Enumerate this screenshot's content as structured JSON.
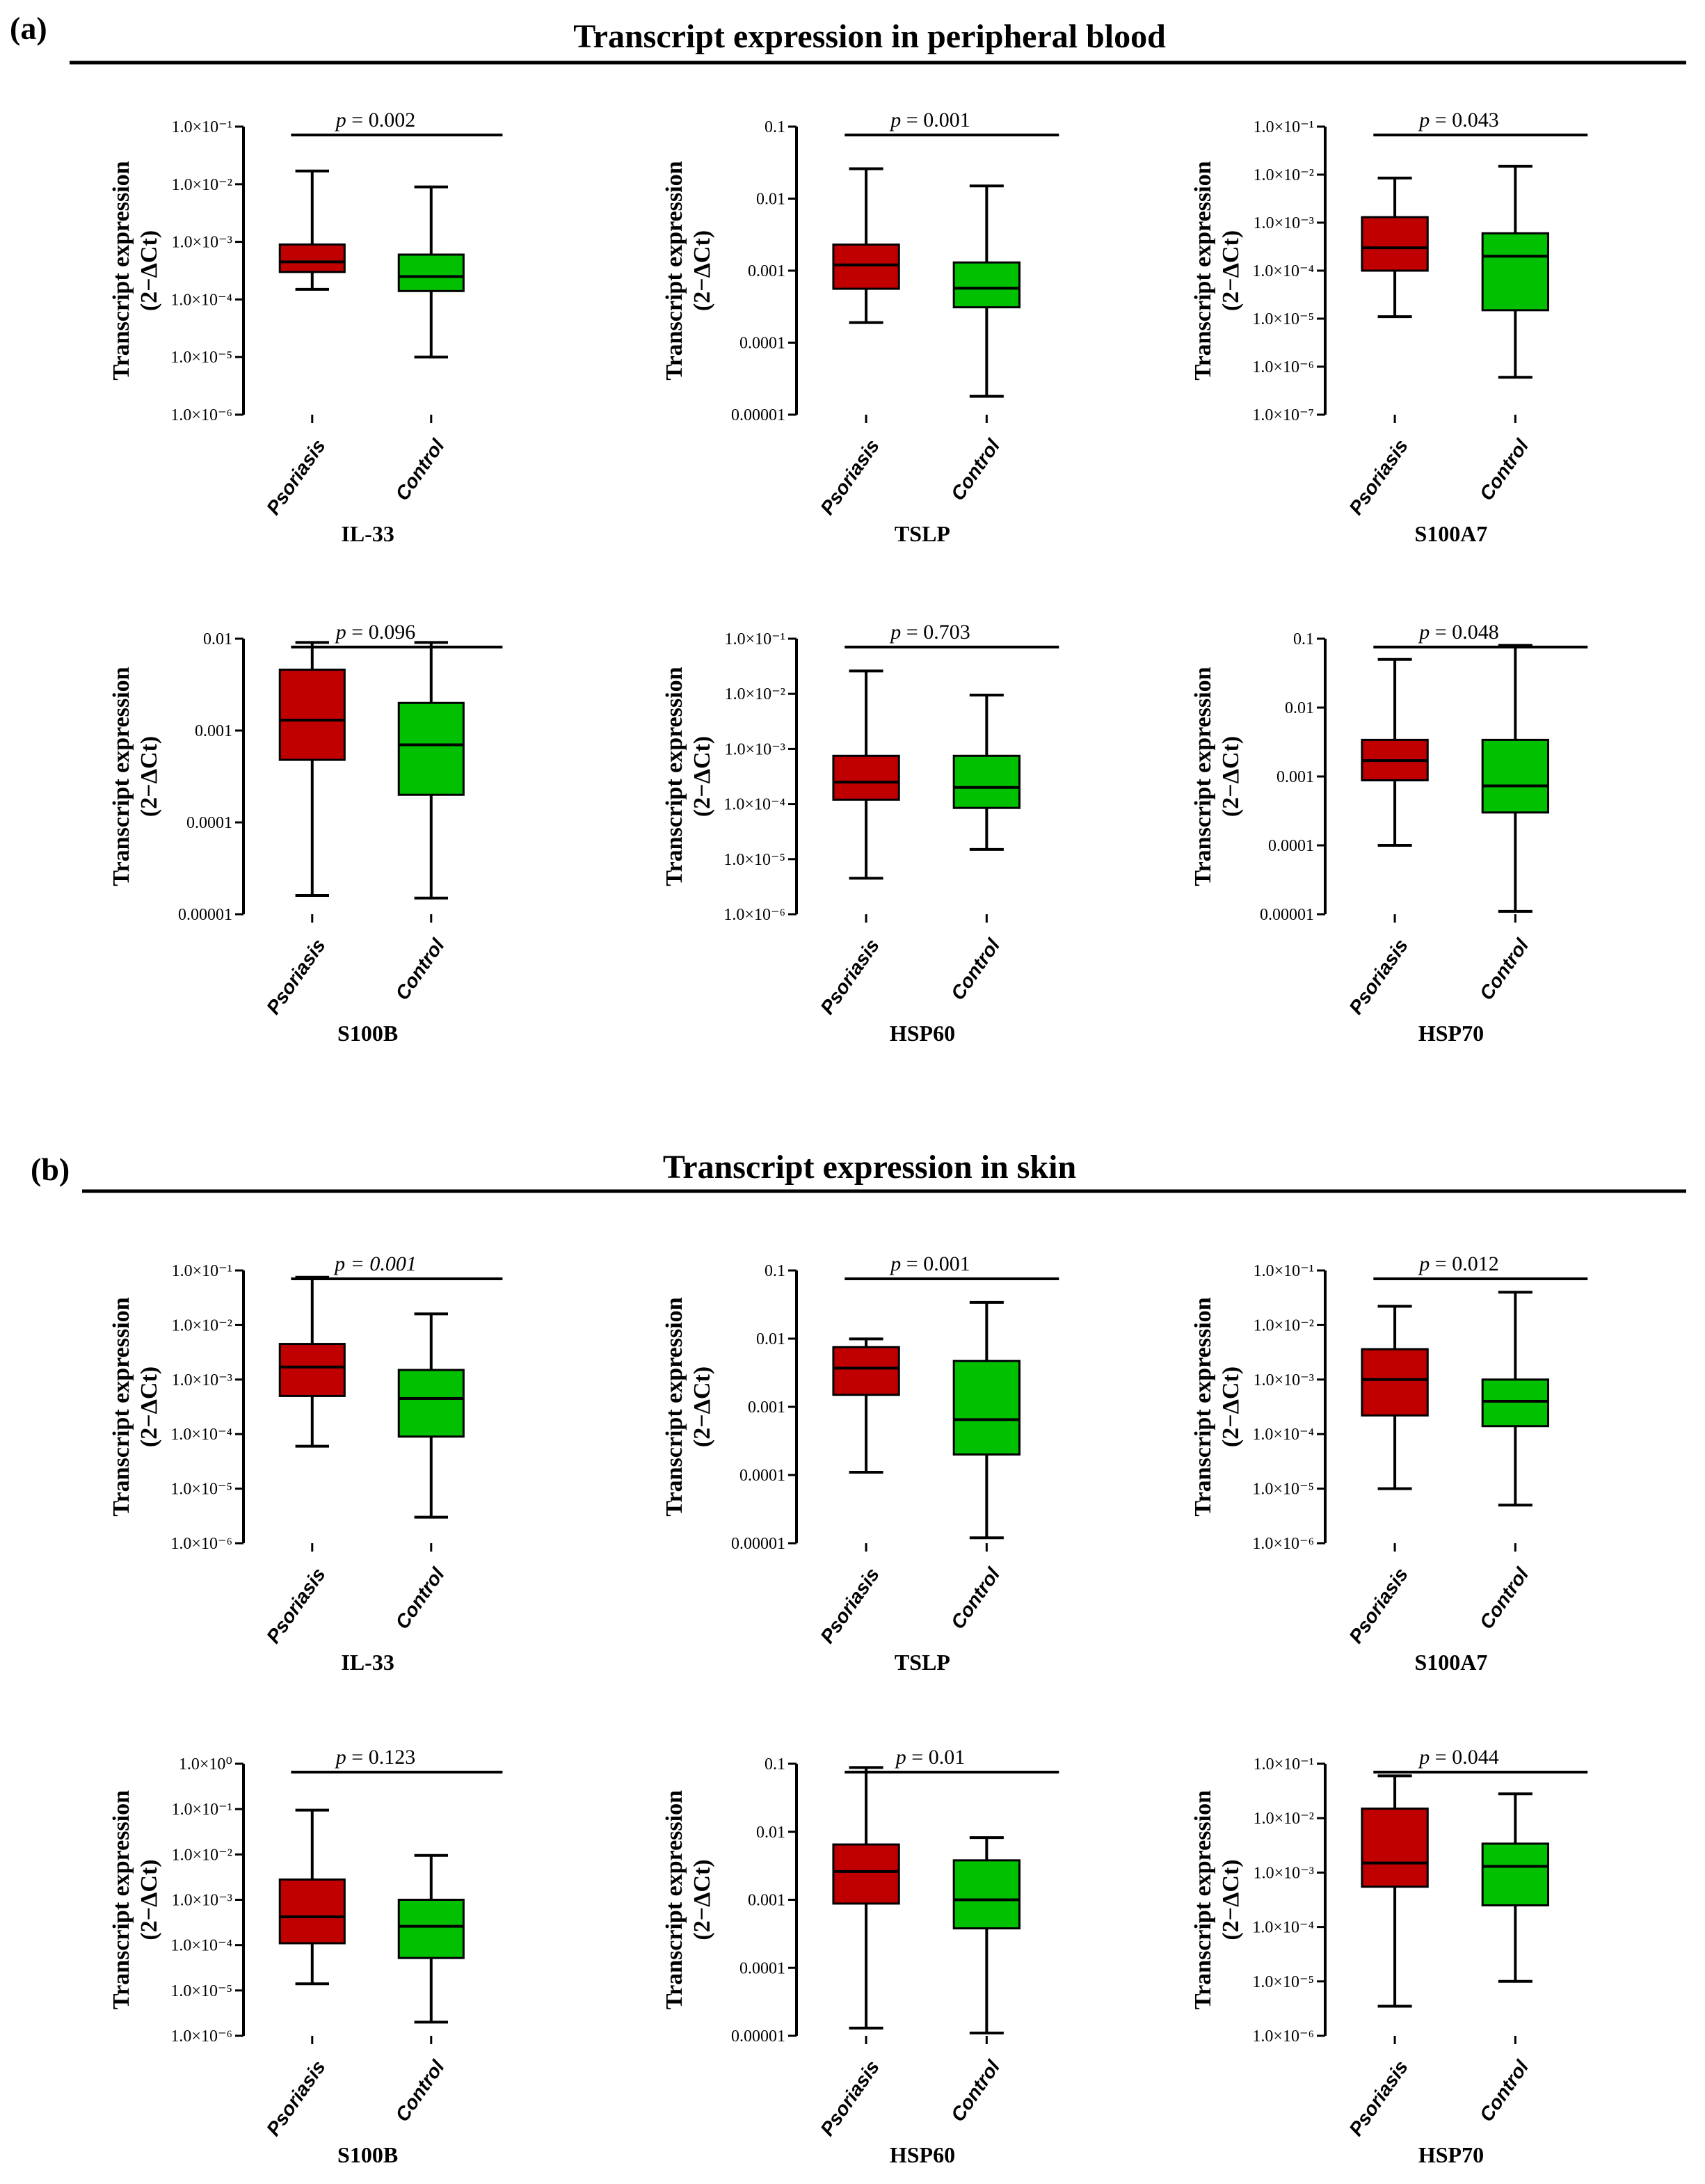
{
  "figure": {
    "sections": [
      {
        "label": "(a)",
        "title": "Transcript expression in peripheral blood"
      },
      {
        "label": "(b)",
        "title": "Transcript expression in skin"
      }
    ],
    "ylabel_line1": "Transcript expression",
    "ylabel_line2": "(2−ΔCt)",
    "groups": [
      "Psoriasis",
      "Control"
    ],
    "colors": {
      "psoriasis": "#c00000",
      "control": "#00c000"
    }
  },
  "chart_data": [
    {
      "type": "box",
      "section": "a",
      "title": "IL-33",
      "p_value": "= 0.002",
      "scale": "log",
      "ylim_exp": [
        -6,
        -1
      ],
      "tick_format": "sci",
      "series": [
        {
          "name": "Psoriasis",
          "whisker_low": 0.00015,
          "q1": 0.0003,
          "median": 0.00045,
          "q3": 0.0009,
          "whisker_high": 0.017
        },
        {
          "name": "Control",
          "whisker_low": 1e-05,
          "q1": 0.00014,
          "median": 0.00025,
          "q3": 0.0006,
          "whisker_high": 0.009
        }
      ]
    },
    {
      "type": "box",
      "section": "a",
      "title": "TSLP",
      "p_value": "= 0.001",
      "scale": "log",
      "ylim_exp": [
        -5,
        -1
      ],
      "tick_format": "decimal",
      "series": [
        {
          "name": "Psoriasis",
          "whisker_low": 0.00019,
          "q1": 0.00056,
          "median": 0.0012,
          "q3": 0.0023,
          "whisker_high": 0.026
        },
        {
          "name": "Control",
          "whisker_low": 1.8e-05,
          "q1": 0.00031,
          "median": 0.00057,
          "q3": 0.0013,
          "whisker_high": 0.015
        }
      ]
    },
    {
      "type": "box",
      "section": "a",
      "title": "S100A7",
      "p_value": "= 0.043",
      "scale": "log",
      "ylim_exp": [
        -7,
        -1
      ],
      "tick_format": "sci",
      "series": [
        {
          "name": "Psoriasis",
          "whisker_low": 1.1e-05,
          "q1": 0.0001,
          "median": 0.0003,
          "q3": 0.0013,
          "whisker_high": 0.0085
        },
        {
          "name": "Control",
          "whisker_low": 6e-07,
          "q1": 1.5e-05,
          "median": 0.0002,
          "q3": 0.0006,
          "whisker_high": 0.015
        }
      ]
    },
    {
      "type": "box",
      "section": "a",
      "title": "S100B",
      "p_value": "= 0.096",
      "scale": "log",
      "ylim_exp": [
        -5,
        -2
      ],
      "tick_format": "decimal",
      "series": [
        {
          "name": "Psoriasis",
          "whisker_low": 1.6e-05,
          "q1": 0.00048,
          "median": 0.0013,
          "q3": 0.0046,
          "whisker_high": 0.0091
        },
        {
          "name": "Control",
          "whisker_low": 1.5e-05,
          "q1": 0.0002,
          "median": 0.0007,
          "q3": 0.002,
          "whisker_high": 0.0091
        }
      ]
    },
    {
      "type": "box",
      "section": "a",
      "title": "HSP60",
      "p_value": "= 0.703",
      "scale": "log",
      "ylim_exp": [
        -6,
        -1
      ],
      "tick_format": "sci",
      "series": [
        {
          "name": "Psoriasis",
          "whisker_low": 4.5e-06,
          "q1": 0.00012,
          "median": 0.00025,
          "q3": 0.00075,
          "whisker_high": 0.026
        },
        {
          "name": "Control",
          "whisker_low": 1.5e-05,
          "q1": 8.5e-05,
          "median": 0.0002,
          "q3": 0.00075,
          "whisker_high": 0.0095
        }
      ]
    },
    {
      "type": "box",
      "section": "a",
      "title": "HSP70",
      "p_value": "= 0.048",
      "scale": "log",
      "ylim_exp": [
        -5,
        -1
      ],
      "tick_format": "decimal",
      "series": [
        {
          "name": "Psoriasis",
          "whisker_low": 0.0001,
          "q1": 0.00088,
          "median": 0.0017,
          "q3": 0.0034,
          "whisker_high": 0.05
        },
        {
          "name": "Control",
          "whisker_low": 1.1e-05,
          "q1": 0.0003,
          "median": 0.00073,
          "q3": 0.0034,
          "whisker_high": 0.08
        }
      ]
    },
    {
      "type": "box",
      "section": "b",
      "title": "IL-33",
      "p_value": "= 0.001",
      "p_italic": true,
      "scale": "log",
      "ylim_exp": [
        -6,
        -1
      ],
      "tick_format": "sci",
      "series": [
        {
          "name": "Psoriasis",
          "whisker_low": 6e-05,
          "q1": 0.0005,
          "median": 0.0017,
          "q3": 0.0045,
          "whisker_high": 0.075
        },
        {
          "name": "Control",
          "whisker_low": 3e-06,
          "q1": 9e-05,
          "median": 0.00045,
          "q3": 0.0015,
          "whisker_high": 0.016
        }
      ]
    },
    {
      "type": "box",
      "section": "b",
      "title": "TSLP",
      "p_value": "= 0.001",
      "scale": "log",
      "ylim_exp": [
        -5,
        -1
      ],
      "tick_format": "decimal",
      "series": [
        {
          "name": "Psoriasis",
          "whisker_low": 0.00011,
          "q1": 0.0015,
          "median": 0.0037,
          "q3": 0.0075,
          "whisker_high": 0.0099
        },
        {
          "name": "Control",
          "whisker_low": 1.2e-05,
          "q1": 0.0002,
          "median": 0.00065,
          "q3": 0.0047,
          "whisker_high": 0.034
        }
      ]
    },
    {
      "type": "box",
      "section": "b",
      "title": "S100A7",
      "p_value": "= 0.012",
      "scale": "log",
      "ylim_exp": [
        -6,
        -1
      ],
      "tick_format": "sci",
      "series": [
        {
          "name": "Psoriasis",
          "whisker_low": 1e-05,
          "q1": 0.00022,
          "median": 0.001,
          "q3": 0.0036,
          "whisker_high": 0.022
        },
        {
          "name": "Control",
          "whisker_low": 5e-06,
          "q1": 0.00014,
          "median": 0.0004,
          "q3": 0.001,
          "whisker_high": 0.04
        }
      ]
    },
    {
      "type": "box",
      "section": "b",
      "title": "S100B",
      "p_value": "= 0.123",
      "scale": "log",
      "ylim_exp": [
        -6,
        0
      ],
      "tick_format": "sci",
      "series": [
        {
          "name": "Psoriasis",
          "whisker_low": 1.4e-05,
          "q1": 0.00011,
          "median": 0.00042,
          "q3": 0.0028,
          "whisker_high": 0.095
        },
        {
          "name": "Control",
          "whisker_low": 2e-06,
          "q1": 5.2e-05,
          "median": 0.00026,
          "q3": 0.001,
          "whisker_high": 0.0095
        }
      ]
    },
    {
      "type": "box",
      "section": "b",
      "title": "HSP60",
      "p_value": "= 0.01",
      "scale": "log",
      "ylim_exp": [
        -5,
        -1
      ],
      "tick_format": "decimal",
      "series": [
        {
          "name": "Psoriasis",
          "whisker_low": 1.3e-05,
          "q1": 0.00088,
          "median": 0.0026,
          "q3": 0.0065,
          "whisker_high": 0.088
        },
        {
          "name": "Control",
          "whisker_low": 1.1e-05,
          "q1": 0.00038,
          "median": 0.001,
          "q3": 0.0038,
          "whisker_high": 0.0082
        }
      ]
    },
    {
      "type": "box",
      "section": "b",
      "title": "HSP70",
      "p_value": "= 0.044",
      "scale": "log",
      "ylim_exp": [
        -6,
        -1
      ],
      "tick_format": "sci",
      "series": [
        {
          "name": "Psoriasis",
          "whisker_low": 3.5e-06,
          "q1": 0.00055,
          "median": 0.0015,
          "q3": 0.015,
          "whisker_high": 0.06
        },
        {
          "name": "Control",
          "whisker_low": 1e-05,
          "q1": 0.00025,
          "median": 0.0013,
          "q3": 0.0034,
          "whisker_high": 0.028
        }
      ]
    }
  ]
}
